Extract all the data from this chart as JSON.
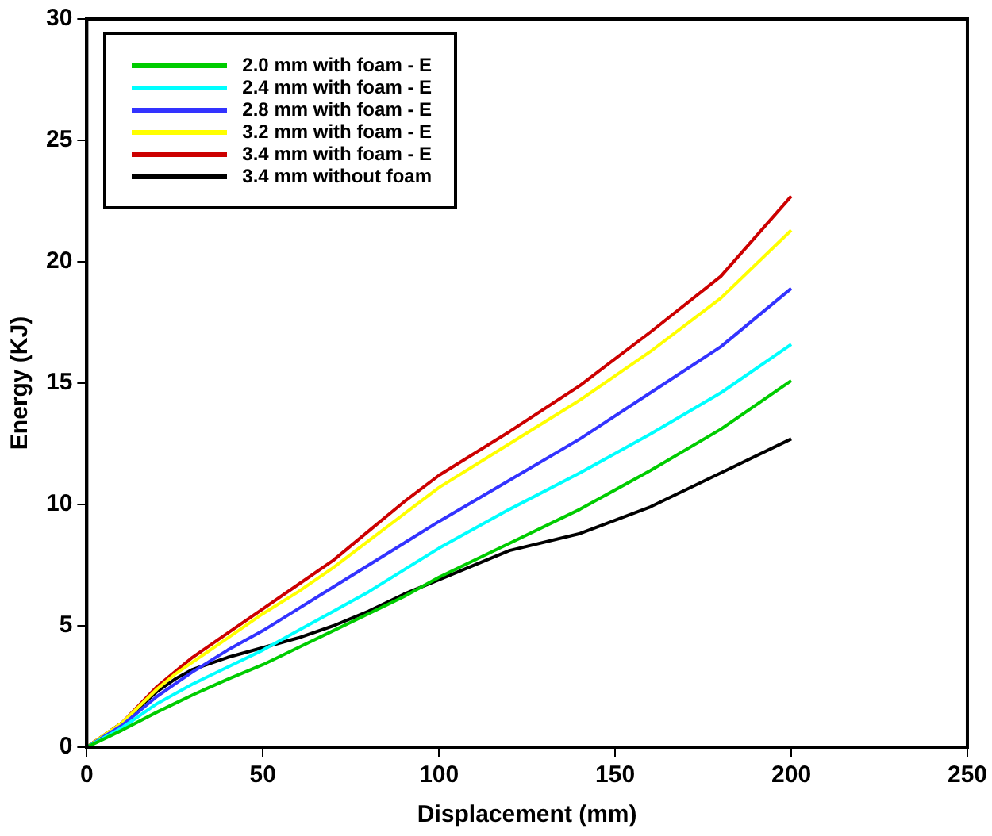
{
  "chart_data": {
    "type": "line",
    "xlabel": "Displacement (mm)",
    "ylabel": "Energy (KJ)",
    "x": [
      0,
      10,
      20,
      25,
      30,
      40,
      50,
      60,
      70,
      80,
      90,
      100,
      120,
      140,
      160,
      180,
      200
    ],
    "series": [
      {
        "name": "2.0 mm with foam - E",
        "color": "#00cc00",
        "values": [
          0,
          0.7,
          1.45,
          1.8,
          2.15,
          2.8,
          3.4,
          4.1,
          4.8,
          5.5,
          6.2,
          7.0,
          8.4,
          9.8,
          11.4,
          13.1,
          15.1
        ]
      },
      {
        "name": "2.4 mm with foam - E",
        "color": "#00ffff",
        "values": [
          0,
          0.8,
          1.8,
          2.2,
          2.6,
          3.3,
          4.0,
          4.8,
          5.6,
          6.4,
          7.3,
          8.2,
          9.8,
          11.3,
          12.9,
          14.6,
          16.6
        ]
      },
      {
        "name": "2.8 mm with foam - E",
        "color": "#3333ff",
        "values": [
          0,
          0.9,
          2.1,
          2.6,
          3.1,
          4.0,
          4.8,
          5.7,
          6.6,
          7.5,
          8.4,
          9.3,
          11.0,
          12.7,
          14.6,
          16.5,
          18.9
        ]
      },
      {
        "name": "3.2 mm with foam - E",
        "color": "#ffff00",
        "values": [
          0,
          1.0,
          2.4,
          3.0,
          3.5,
          4.5,
          5.5,
          6.4,
          7.4,
          8.5,
          9.6,
          10.7,
          12.5,
          14.3,
          16.3,
          18.5,
          21.3
        ]
      },
      {
        "name": "3.4 mm with foam - E",
        "color": "#cc0000",
        "values": [
          0,
          1.0,
          2.5,
          3.1,
          3.7,
          4.7,
          5.7,
          6.7,
          7.7,
          8.9,
          10.1,
          11.2,
          13.0,
          14.9,
          17.1,
          19.4,
          22.7
        ]
      },
      {
        "name": "3.4 mm without foam",
        "color": "#000000",
        "values": [
          0,
          1.0,
          2.3,
          2.8,
          3.2,
          3.7,
          4.1,
          4.5,
          5.0,
          5.6,
          6.3,
          6.9,
          8.1,
          8.8,
          9.9,
          11.3,
          12.7
        ]
      }
    ],
    "xlim": [
      0,
      250
    ],
    "xticks": [
      0,
      50,
      100,
      150,
      200,
      250
    ],
    "ylim": [
      0,
      30
    ],
    "yticks": [
      0,
      5,
      10,
      15,
      20,
      25,
      30
    ],
    "grid": false,
    "legend": "top left",
    "marker": "none",
    "line_style": "solid"
  }
}
